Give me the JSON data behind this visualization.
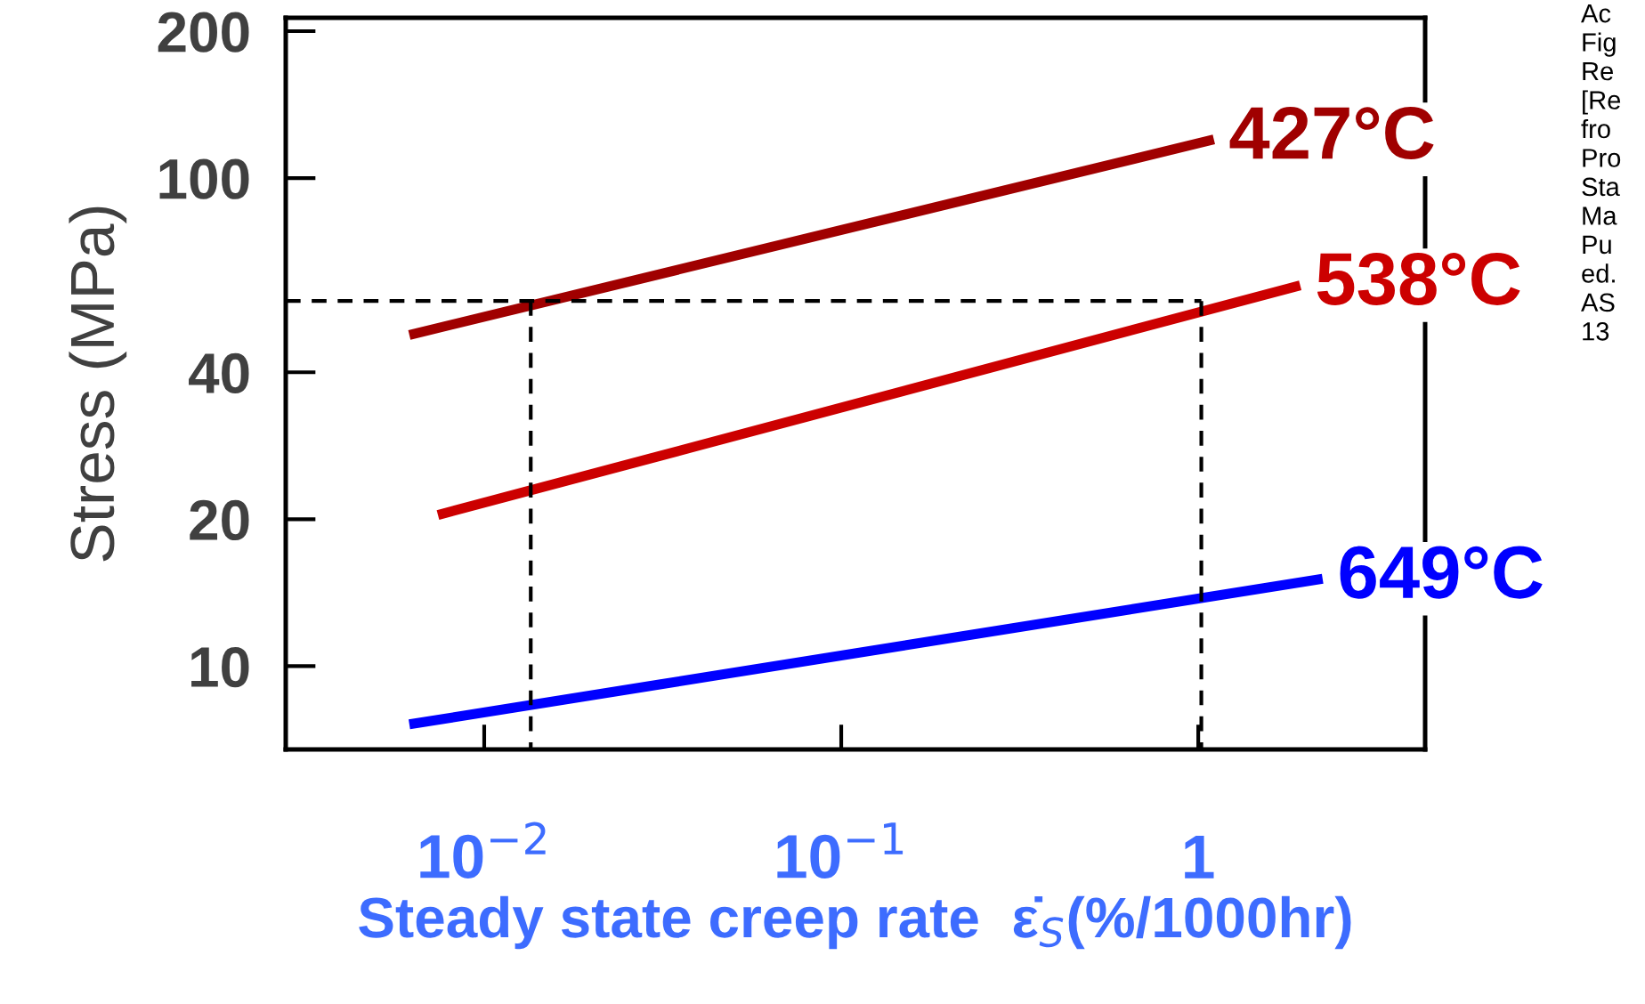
{
  "chart_data": {
    "type": "line",
    "xlabel": "Steady state creep rate  ε̇$_{S}$(%/1000hr)",
    "ylabel": "Stress (MPa)",
    "log": "xy",
    "grid": false,
    "marker": "none",
    "line_style": "solid",
    "xlim": [
      0.00278,
      4.32
    ],
    "ylim": [
      6.75,
      213
    ],
    "xticks": [
      {
        "value": 0.01,
        "label": "10$^{−2}$"
      },
      {
        "value": 0.1,
        "label": "10$^{−1}$"
      },
      1
    ],
    "yticks": [
      10,
      20,
      40,
      100,
      200
    ],
    "series": [
      {
        "name": "427°C",
        "color": "#a00000",
        "x": [
          0.00617,
          1.106
        ],
        "values": [
          47.7,
          120
        ]
      },
      {
        "name": "538°C",
        "color": "#cc0000",
        "x": [
          0.00742,
          1.93
        ],
        "values": [
          20.4,
          60.3
        ]
      },
      {
        "name": "649°C",
        "color": "#0000ff",
        "x": [
          0.00617,
          2.23
        ],
        "values": [
          7.6,
          15.1
        ]
      },
      {
        "color": "#000000",
        "line_style": "dashed",
        "x": [
          0.00278,
          1.02
        ],
        "values": [
          56,
          56
        ]
      },
      {
        "color": "#000000",
        "line_style": "dashed",
        "x": [
          0.0135,
          0.0135
        ],
        "values": [
          56,
          6.75
        ]
      },
      {
        "color": "#000000",
        "line_style": "dashed",
        "x": [
          1.02,
          1.02
        ],
        "values": [
          56,
          6.75
        ]
      }
    ],
    "annotations": [
      "Ac\nFig\nRe\n[Re\nfro\nPro\nSta\nMa\nPu\ned.\nAS\n13"
    ]
  }
}
